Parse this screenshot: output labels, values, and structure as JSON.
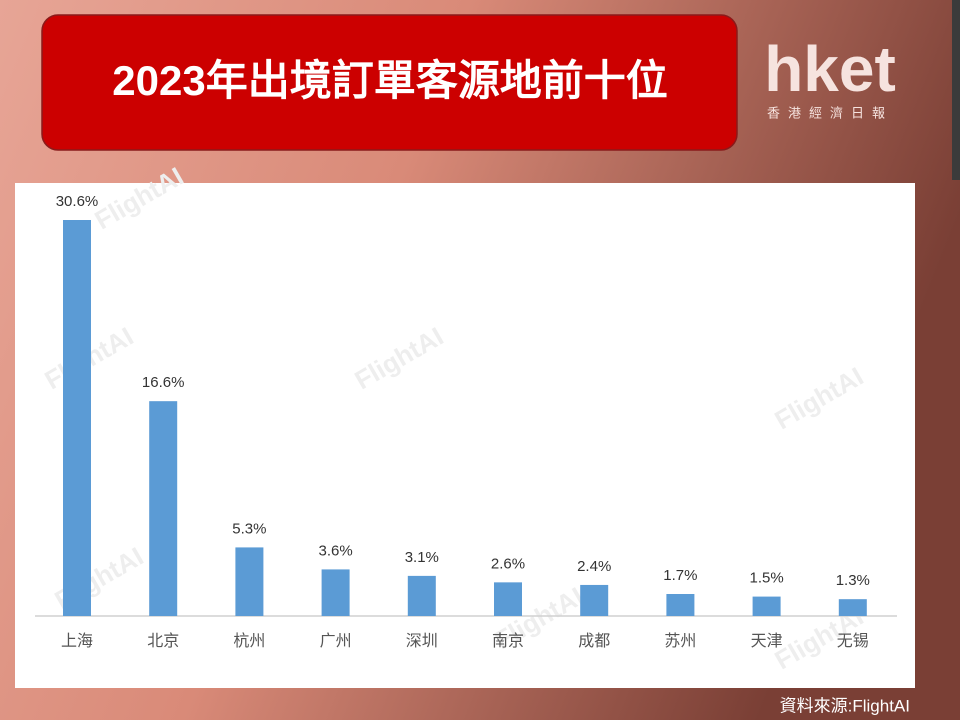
{
  "chart_data": {
    "type": "bar",
    "title": "2023年出境訂單客源地前十位",
    "logo": "hket",
    "logo_subtitle": "香港經濟日報",
    "watermark": "FlightAI",
    "source": "資料來源:FlightAI",
    "categories": [
      "上海",
      "北京",
      "杭州",
      "广州",
      "深圳",
      "南京",
      "成都",
      "苏州",
      "天津",
      "无锡"
    ],
    "values": [
      30.6,
      16.6,
      5.3,
      3.6,
      3.1,
      2.6,
      2.4,
      1.7,
      1.5,
      1.3
    ],
    "value_labels": [
      "30.6%",
      "16.6%",
      "5.3%",
      "3.6%",
      "3.1%",
      "2.6%",
      "2.4%",
      "1.7%",
      "1.5%",
      "1.3%"
    ],
    "color": "#5b9bd5"
  }
}
